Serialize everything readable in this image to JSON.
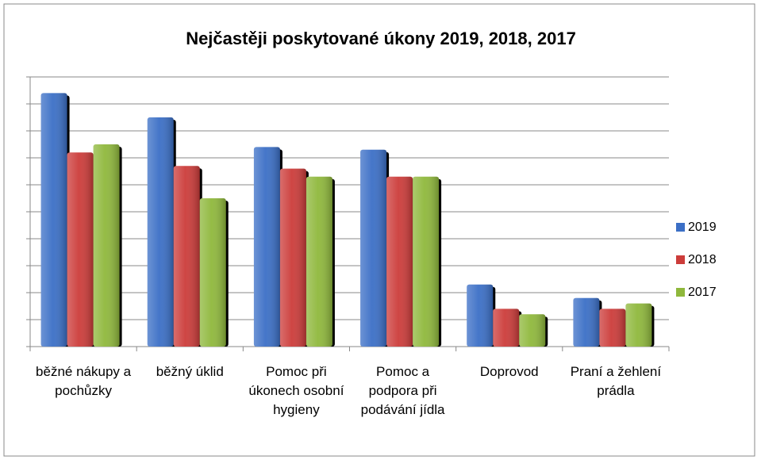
{
  "chart_data": {
    "type": "bar",
    "title": "Nejčastěji poskytované úkony 2019, 2018, 2017",
    "categories": [
      "běžné nákupy a pochůzky",
      "běžný úklid",
      "Pomoc při úkonech osobní hygieny",
      "Pomoc a podpora při podávání jídla",
      "Doprovod",
      "Praní a žehlení prádla"
    ],
    "series": [
      {
        "name": "2019",
        "color": "#3b6fc6",
        "values": [
          9.4,
          8.5,
          7.4,
          7.3,
          2.3,
          1.8
        ]
      },
      {
        "name": "2018",
        "color": "#cc3c3a",
        "values": [
          7.2,
          6.7,
          6.6,
          6.3,
          1.4,
          1.4
        ]
      },
      {
        "name": "2017",
        "color": "#8fb83c",
        "values": [
          7.5,
          5.5,
          6.3,
          6.3,
          1.2,
          1.6
        ]
      }
    ],
    "ylim": [
      0,
      10
    ],
    "yticks": [
      0,
      1,
      2,
      3,
      4,
      5,
      6,
      7,
      8,
      9,
      10
    ],
    "grid": true,
    "legend": "right"
  }
}
